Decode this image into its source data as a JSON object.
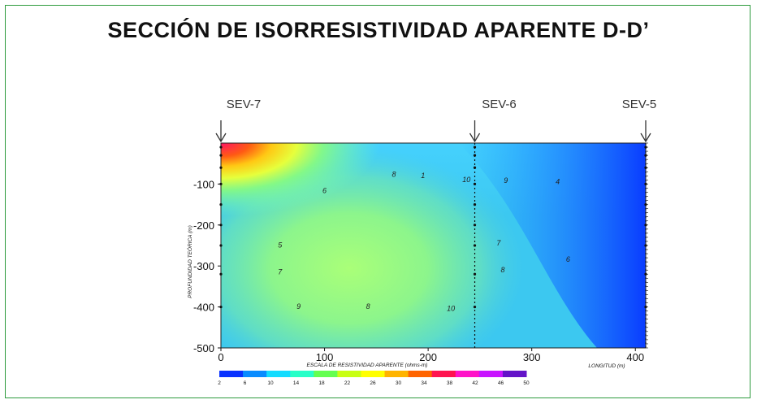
{
  "title": "SECCIÓN DE ISORRESISTIVIDAD APARENTE D-D’",
  "chart_data": {
    "type": "heatmap",
    "xlim": [
      0,
      410
    ],
    "ylim": [
      -500,
      0
    ],
    "x_ticks": [
      0,
      100,
      200,
      300,
      400
    ],
    "y_ticks": [
      -100,
      -200,
      -300,
      -400,
      -500
    ],
    "x_tick_labels": [
      "0",
      "100",
      "200",
      "300",
      "400"
    ],
    "y_tick_labels": [
      "-100",
      "-200",
      "-300",
      "-400",
      "-500"
    ],
    "ylabel": "PROFUNDIDAD TEÓRICA (m)",
    "xlabel": "LONGITUD (m)",
    "sev_stations": [
      {
        "label": "SEV-7",
        "x": 0
      },
      {
        "label": "SEV-6",
        "x": 245
      },
      {
        "label": "SEV-5",
        "x": 410
      }
    ],
    "sounding_depths": [
      -10,
      -30,
      -60,
      -100,
      -150,
      -200,
      -250,
      -320,
      -400
    ],
    "contour_labels": [
      {
        "text": "8",
        "x": 167,
        "y": -82
      },
      {
        "text": "1",
        "x": 195,
        "y": -85
      },
      {
        "text": "10",
        "x": 237,
        "y": -95
      },
      {
        "text": "9",
        "x": 275,
        "y": -97
      },
      {
        "text": "4",
        "x": 325,
        "y": -100
      },
      {
        "text": "6",
        "x": 100,
        "y": -122
      },
      {
        "text": "5",
        "x": 57,
        "y": -255
      },
      {
        "text": "7",
        "x": 268,
        "y": -250
      },
      {
        "text": "8",
        "x": 272,
        "y": -315
      },
      {
        "text": "6",
        "x": 335,
        "y": -290
      },
      {
        "text": "7",
        "x": 57,
        "y": -320
      },
      {
        "text": "9",
        "x": 75,
        "y": -405
      },
      {
        "text": "8",
        "x": 142,
        "y": -405
      },
      {
        "text": "10",
        "x": 222,
        "y": -410
      }
    ],
    "color_scale": {
      "title": "ESCALA DE RESISTIVIDAD APARENTE (ohms-m)",
      "ticks": [
        "2",
        "6",
        "10",
        "14",
        "18",
        "22",
        "26",
        "30",
        "34",
        "38",
        "42",
        "46",
        "50"
      ],
      "colors": [
        "#0a32ff",
        "#0a8cff",
        "#14dcff",
        "#28ffc8",
        "#64ff50",
        "#c8ff14",
        "#ffff00",
        "#ffb400",
        "#ff6400",
        "#ff1450",
        "#ff14c8",
        "#c814ff",
        "#6414c8"
      ]
    }
  }
}
